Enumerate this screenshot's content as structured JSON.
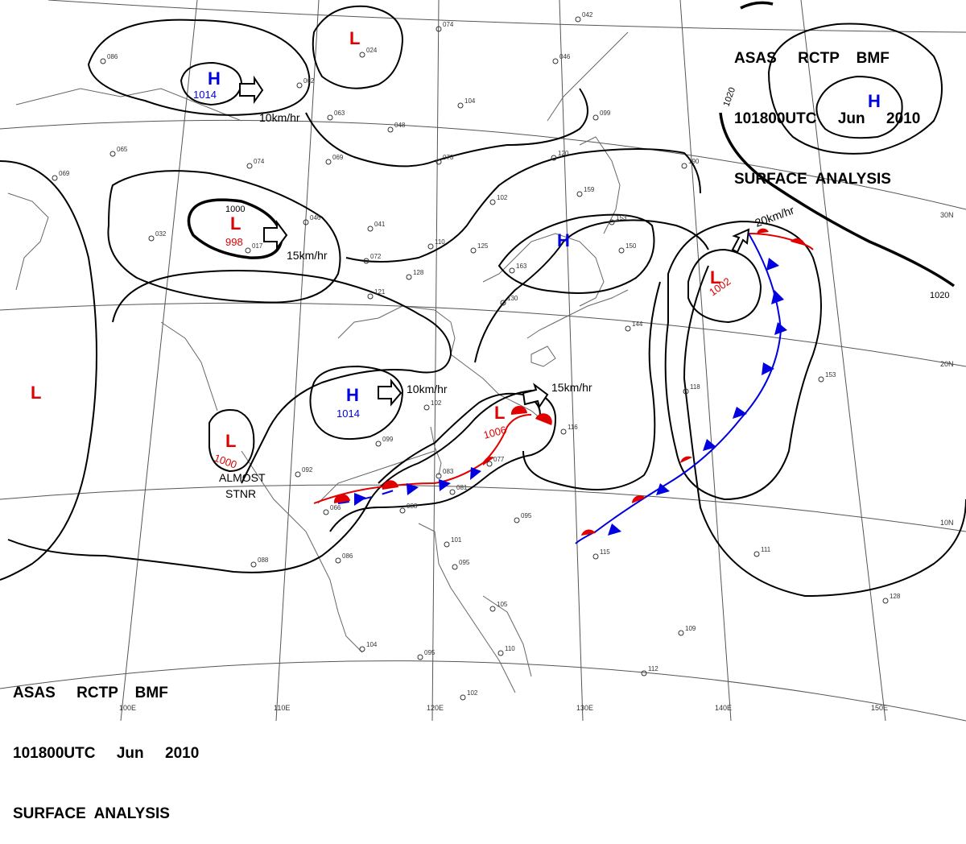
{
  "header": {
    "line1": "ASAS     RCTP    BMF",
    "line2": "101800UTC     Jun     2010",
    "line3": "SURFACE  ANALYSIS"
  },
  "footer": {
    "line1": "ASAS     RCTP    BMF",
    "line2": "101800UTC     Jun     2010",
    "line3": "SURFACE  ANALYSIS"
  },
  "colors": {
    "low": "#e00000",
    "high": "#0000e0",
    "isobar": "#000000",
    "coast": "#666666"
  },
  "lat_labels": [
    "30N",
    "20N",
    "10N"
  ],
  "lon_labels": [
    "100E",
    "110E",
    "120E",
    "130E",
    "140E",
    "150E"
  ],
  "isobar_labels": [
    "1000",
    "1020",
    "1020"
  ],
  "systems": [
    {
      "type": "H",
      "pressure": "1014",
      "motion": "10km/hr"
    },
    {
      "type": "L",
      "pressure": "",
      "motion": ""
    },
    {
      "type": "L",
      "pressure": "998",
      "motion": "15km/hr"
    },
    {
      "type": "H",
      "pressure": "",
      "motion": ""
    },
    {
      "type": "H",
      "pressure": "",
      "motion": ""
    },
    {
      "type": "L",
      "pressure": "1002",
      "motion": "20km/hr"
    },
    {
      "type": "L",
      "pressure": "",
      "motion": ""
    },
    {
      "type": "H",
      "pressure": "1014",
      "motion": "10km/hr"
    },
    {
      "type": "L",
      "pressure": "1006",
      "motion": "15km/hr"
    },
    {
      "type": "L",
      "pressure": "1000",
      "motion": "ALMOST STNR"
    }
  ],
  "stations": [
    "086",
    "074",
    "042",
    "024",
    "062",
    "046",
    "104",
    "063",
    "048",
    "065",
    "120",
    "099",
    "190",
    "069",
    "074",
    "073",
    "102",
    "159",
    "069",
    "046",
    "032",
    "041",
    "110",
    "125",
    "153",
    "017",
    "072",
    "128",
    "150",
    "121",
    "163",
    "130",
    "144",
    "118",
    "153",
    "092",
    "099",
    "102",
    "083",
    "077",
    "081",
    "066",
    "088",
    "095",
    "101",
    "086",
    "088",
    "095",
    "105",
    "104",
    "095",
    "110",
    "102",
    "112",
    "109",
    "115",
    "111",
    "128",
    "116"
  ]
}
